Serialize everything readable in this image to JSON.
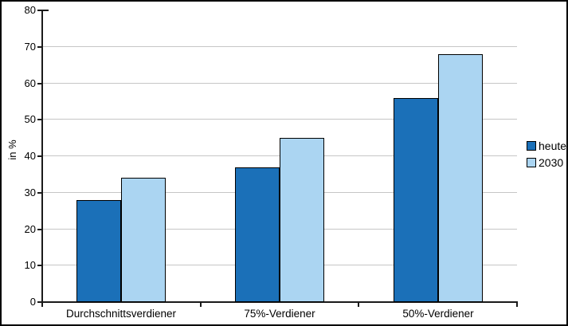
{
  "window": {
    "background": "#FFFFFF",
    "frame_color": "#000000"
  },
  "chart_data": {
    "type": "bar",
    "title": "",
    "categories": [
      "Durchschnittsverdiener",
      "75%-Verdiener",
      "50%-Verdiener"
    ],
    "series": [
      {
        "name": "heute",
        "color": "#1B70B8",
        "values": [
          28,
          37,
          56
        ]
      },
      {
        "name": "2030",
        "color": "#ABD5F2",
        "values": [
          34,
          45,
          68
        ]
      }
    ],
    "xlabel": "",
    "ylabel": "in %",
    "ylim": [
      0,
      80
    ],
    "yticks": [
      0,
      10,
      20,
      30,
      40,
      50,
      60,
      70,
      80
    ],
    "grid": "horizontal",
    "gridline_color": "#C6C6C6",
    "axis_color": "#1A1A1A",
    "bar_border_color": "#000000",
    "legend_position": "right"
  }
}
